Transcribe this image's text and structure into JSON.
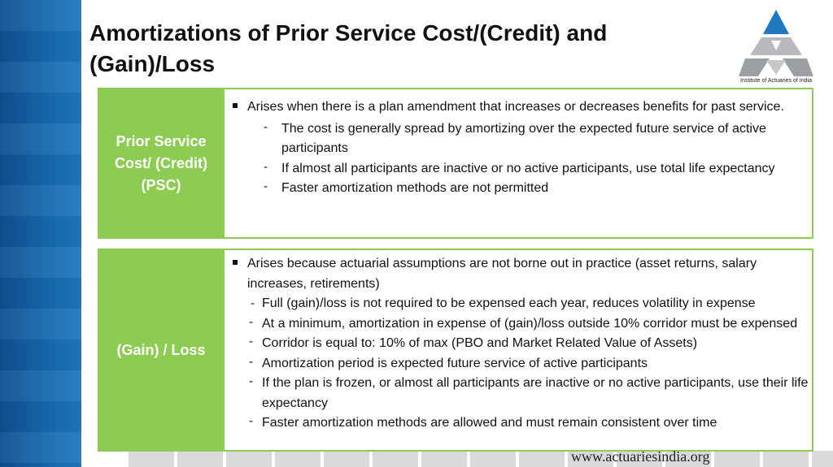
{
  "title": "Amortizations of Prior Service Cost/(Credit) and (Gain)/Loss",
  "logo": {
    "caption": "Institute of Actuaries of India"
  },
  "psc": {
    "label": "Prior Service Cost/ (Credit) (PSC)",
    "bullet": "Arises when there is a plan amendment that increases or decreases benefits for past service.",
    "subs": [
      "The cost is generally spread by amortizing over the expected future service of active participants",
      "If almost all participants are inactive or no active participants, use total life expectancy",
      "Faster amortization methods are not permitted"
    ]
  },
  "gainloss": {
    "label": "(Gain) / Loss",
    "bullet": "Arises because actuarial assumptions are not borne out in practice (asset returns, salary increases, retirements)",
    "subs": [
      "Full (gain)/loss is not required to be expensed each year, reduces volatility in expense",
      "At a minimum, amortization in expense of (gain)/loss outside 10% corridor must be expensed",
      "Corridor is equal to: 10% of max (PBO and Market Related Value of Assets)",
      "Amortization period is expected future service of active participants",
      "If the plan is frozen, or almost all participants are inactive or no active participants, use their life expectancy",
      "Faster amortization methods are allowed and must remain consistent over time"
    ]
  },
  "footer": {
    "url": "www.actuariesindia.org"
  },
  "colors": {
    "accent_green": "#8dcc52",
    "blue_band": "#1a6fb5"
  }
}
